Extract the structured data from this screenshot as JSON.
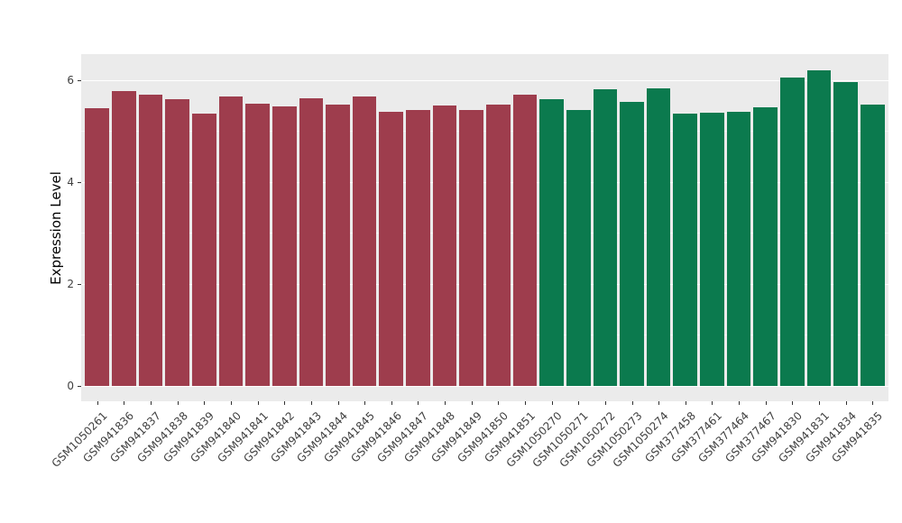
{
  "chart_data": {
    "type": "bar",
    "title": "",
    "xlabel": "",
    "ylabel": "Expression Level",
    "ylim": [
      0,
      6.5
    ],
    "yticks": [
      0,
      2,
      4,
      6
    ],
    "yticks_minor": [
      1,
      3,
      5
    ],
    "grid": "on",
    "legend": "none",
    "categories": [
      "GSM1050261",
      "GSM941836",
      "GSM941837",
      "GSM941838",
      "GSM941839",
      "GSM941840",
      "GSM941841",
      "GSM941842",
      "GSM941843",
      "GSM941844",
      "GSM941845",
      "GSM941846",
      "GSM941847",
      "GSM941848",
      "GSM941849",
      "GSM941850",
      "GSM941851",
      "GSM1050270",
      "GSM1050271",
      "GSM1050272",
      "GSM1050273",
      "GSM1050274",
      "GSM377458",
      "GSM377461",
      "GSM377464",
      "GSM377467",
      "GSM941830",
      "GSM941831",
      "GSM941834",
      "GSM941835"
    ],
    "values": [
      5.45,
      5.78,
      5.72,
      5.62,
      5.35,
      5.68,
      5.53,
      5.48,
      5.65,
      5.52,
      5.67,
      5.38,
      5.42,
      5.51,
      5.41,
      5.52,
      5.72,
      5.63,
      5.42,
      5.82,
      5.57,
      5.83,
      5.35,
      5.36,
      5.38,
      5.47,
      6.05,
      6.2,
      5.97,
      5.52
    ],
    "groups": [
      0,
      0,
      0,
      0,
      0,
      0,
      0,
      0,
      0,
      0,
      0,
      0,
      0,
      0,
      0,
      0,
      0,
      1,
      1,
      1,
      1,
      1,
      1,
      1,
      1,
      1,
      1,
      1,
      1,
      1
    ],
    "group_colors": [
      "#9E3D4D",
      "#0B7A4E"
    ],
    "panel_bg": "#EBEBEB",
    "grid_color": "#FFFFFF",
    "tick_label_color": "#404040"
  }
}
